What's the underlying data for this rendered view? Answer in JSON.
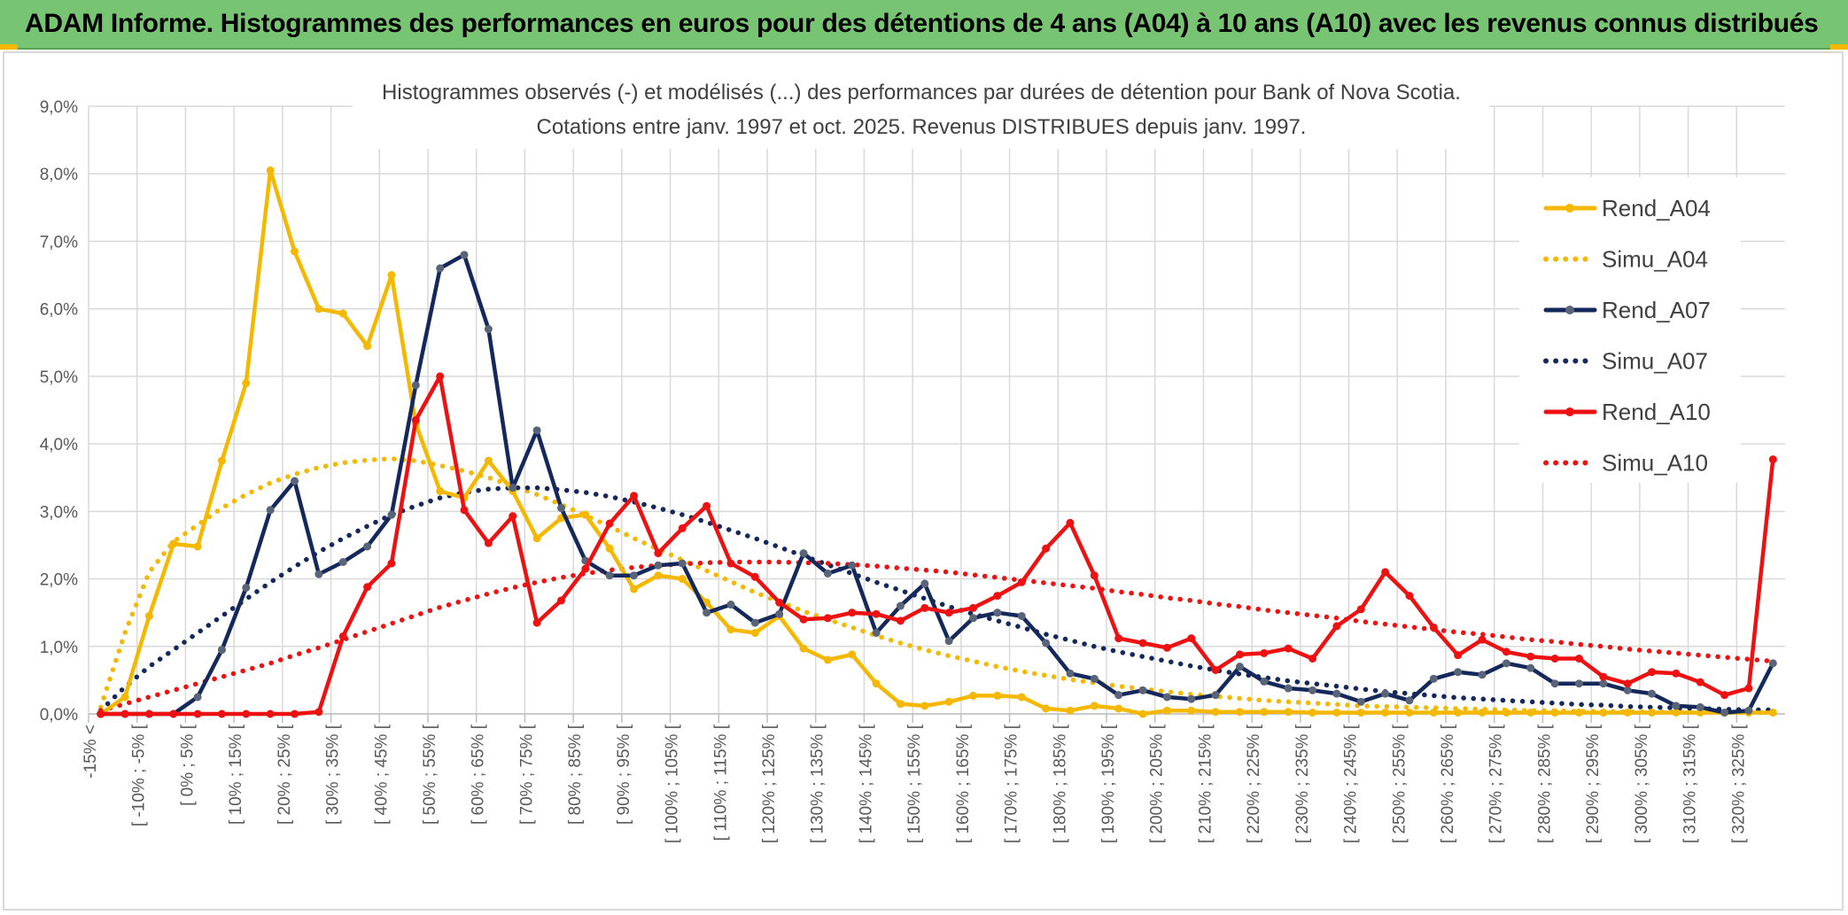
{
  "header": {
    "title": "ADAM Informe. Histogrammes des performances en euros pour des détentions de 4 ans (A04) à 10 ans (A10) avec les revenus connus distribués"
  },
  "colors": {
    "banner": "#77c472",
    "A04": "#f5b800",
    "A07": "#14285c",
    "A10": "#ee1111",
    "grid": "#d9d9d9"
  },
  "chart_data": {
    "type": "line",
    "title_line1": "Histogrammes observés (-) et modélisés (...) des performances par durées de détention pour Bank of Nova Scotia.",
    "title_line2": "Cotations entre janv. 1997 et oct. 2025. Revenus DISTRIBUES depuis janv. 1997.",
    "xlabel": "",
    "ylabel": "",
    "ylim": [
      0,
      9
    ],
    "yticks": [
      "0,0%",
      "1,0%",
      "2,0%",
      "3,0%",
      "4,0%",
      "5,0%",
      "6,0%",
      "7,0%",
      "8,0%",
      "9,0%"
    ],
    "grid": true,
    "legend_position": "right",
    "x_tick_labels": [
      "-15% <",
      "[ -10% ; -5% [",
      "[ 0% ; 5% [",
      "[ 10% ; 15% [",
      "[ 20% ; 25% [",
      "[ 30% ; 35% [",
      "[ 40% ; 45% [",
      "[ 50% ; 55% [",
      "[ 60% ; 65% [",
      "[ 70% ; 75% [",
      "[ 80% ; 85% [",
      "[ 90% ; 95% [",
      "[ 100% ; 105% [",
      "[ 110% ; 115% [",
      "[ 120% ; 125% [",
      "[ 130% ; 135% [",
      "[ 140% ; 145% [",
      "[ 150% ; 155% [",
      "[ 160% ; 165% [",
      "[ 170% ; 175% [",
      "[ 180% ; 185% [",
      "[ 190% ; 195% [",
      "[ 200% ; 205% [",
      "[ 210% ; 215% [",
      "[ 220% ; 225% [",
      "[ 230% ; 235% [",
      "[ 240% ; 245% [",
      "[ 250% ; 255% [",
      "[ 260% ; 265% [",
      "[ 270% ; 275% [",
      "[ 280% ; 285% [",
      "[ 290% ; 295% [",
      "[ 300% ; 305% [",
      "[ 310% ; 315% [",
      "[ 320% ; 325% ["
    ],
    "series": [
      {
        "name": "Rend_A04",
        "style": "solid",
        "color": "#f5b800",
        "values": [
          0,
          0.25,
          1.45,
          2.52,
          2.48,
          3.75,
          4.9,
          8.05,
          6.85,
          6.0,
          5.93,
          5.45,
          6.5,
          4.3,
          3.3,
          3.2,
          3.75,
          3.3,
          2.6,
          2.9,
          2.95,
          2.45,
          1.85,
          2.05,
          2.0,
          1.65,
          1.25,
          1.2,
          1.45,
          0.97,
          0.8,
          0.88,
          0.45,
          0.15,
          0.12,
          0.18,
          0.27,
          0.27,
          0.25,
          0.08,
          0.05,
          0.12,
          0.08,
          0,
          0.05,
          0.05,
          0.03,
          0.03,
          0.03,
          0.03,
          0.02,
          0.02,
          0.02,
          0.02,
          0.02,
          0.02,
          0.02,
          0.02,
          0.02,
          0.02,
          0.02,
          0.02,
          0.02,
          0.02,
          0.02,
          0.02,
          0.02,
          0.02,
          0.02,
          0.02
        ]
      },
      {
        "name": "Simu_A04",
        "style": "dotted",
        "color": "#f5b800",
        "values": [
          0.1,
          1.2,
          2.1,
          2.55,
          2.8,
          3.05,
          3.25,
          3.42,
          3.55,
          3.65,
          3.72,
          3.76,
          3.78,
          3.75,
          3.68,
          3.6,
          3.5,
          3.38,
          3.25,
          3.1,
          2.94,
          2.78,
          2.6,
          2.44,
          2.28,
          2.12,
          1.96,
          1.8,
          1.66,
          1.52,
          1.4,
          1.28,
          1.16,
          1.05,
          0.95,
          0.86,
          0.78,
          0.7,
          0.63,
          0.57,
          0.51,
          0.46,
          0.41,
          0.37,
          0.33,
          0.29,
          0.26,
          0.23,
          0.2,
          0.18,
          0.16,
          0.14,
          0.12,
          0.11,
          0.1,
          0.09,
          0.08,
          0.07,
          0.06,
          0.05,
          0.05,
          0.04,
          0.04,
          0.03,
          0.03,
          0.03,
          0.02,
          0.02,
          0.02,
          0.02
        ]
      },
      {
        "name": "Rend_A07",
        "style": "solid",
        "color": "#14285c",
        "values": [
          0,
          0,
          0,
          0,
          0.25,
          0.95,
          1.87,
          3.02,
          3.45,
          2.07,
          2.25,
          2.48,
          2.95,
          4.87,
          6.6,
          6.8,
          5.7,
          3.35,
          4.2,
          3.05,
          2.27,
          2.05,
          2.05,
          2.2,
          2.23,
          1.5,
          1.62,
          1.35,
          1.48,
          2.38,
          2.08,
          2.2,
          1.2,
          1.6,
          1.93,
          1.08,
          1.42,
          1.5,
          1.45,
          1.05,
          0.6,
          0.52,
          0.28,
          0.35,
          0.25,
          0.22,
          0.28,
          0.7,
          0.48,
          0.38,
          0.35,
          0.3,
          0.18,
          0.3,
          0.2,
          0.52,
          0.62,
          0.58,
          0.75,
          0.68,
          0.45,
          0.45,
          0.45,
          0.35,
          0.3,
          0.12,
          0.1,
          0.02,
          0.05,
          0.75
        ]
      },
      {
        "name": "Simu_A07",
        "style": "dotted",
        "color": "#14285c",
        "values": [
          0.05,
          0.4,
          0.7,
          0.95,
          1.2,
          1.45,
          1.7,
          1.95,
          2.18,
          2.4,
          2.6,
          2.78,
          2.95,
          3.08,
          3.2,
          3.28,
          3.33,
          3.35,
          3.35,
          3.32,
          3.28,
          3.22,
          3.14,
          3.05,
          2.95,
          2.84,
          2.72,
          2.6,
          2.47,
          2.34,
          2.21,
          2.08,
          1.95,
          1.83,
          1.71,
          1.59,
          1.48,
          1.38,
          1.28,
          1.18,
          1.09,
          1.0,
          0.92,
          0.85,
          0.78,
          0.71,
          0.65,
          0.59,
          0.54,
          0.49,
          0.45,
          0.41,
          0.37,
          0.33,
          0.3,
          0.27,
          0.24,
          0.22,
          0.2,
          0.18,
          0.16,
          0.14,
          0.13,
          0.11,
          0.1,
          0.09,
          0.08,
          0.07,
          0.06,
          0.06
        ]
      },
      {
        "name": "Rend_A10",
        "style": "solid",
        "color": "#ee1111",
        "values": [
          0,
          0,
          0,
          0,
          0,
          0,
          0,
          0,
          0,
          0.03,
          1.15,
          1.88,
          2.23,
          4.35,
          5.0,
          3.02,
          2.53,
          2.93,
          1.35,
          1.68,
          2.15,
          2.82,
          3.23,
          2.38,
          2.75,
          3.08,
          2.23,
          2.03,
          1.65,
          1.4,
          1.42,
          1.5,
          1.48,
          1.38,
          1.57,
          1.5,
          1.57,
          1.75,
          1.95,
          2.45,
          2.83,
          2.05,
          1.12,
          1.05,
          0.98,
          1.12,
          0.65,
          0.88,
          0.9,
          0.97,
          0.82,
          1.3,
          1.55,
          2.1,
          1.75,
          1.28,
          0.87,
          1.1,
          0.92,
          0.85,
          0.82,
          0.82,
          0.55,
          0.45,
          0.62,
          0.6,
          0.47,
          0.28,
          0.38,
          3.77
        ]
      },
      {
        "name": "Simu_A10",
        "style": "dotted",
        "color": "#ee1111",
        "values": [
          0.05,
          0.15,
          0.25,
          0.35,
          0.45,
          0.55,
          0.65,
          0.75,
          0.87,
          0.98,
          1.1,
          1.22,
          1.34,
          1.46,
          1.58,
          1.68,
          1.78,
          1.87,
          1.95,
          2.02,
          2.08,
          2.13,
          2.17,
          2.2,
          2.22,
          2.24,
          2.25,
          2.25,
          2.25,
          2.24,
          2.23,
          2.21,
          2.19,
          2.16,
          2.13,
          2.1,
          2.06,
          2.02,
          1.98,
          1.94,
          1.9,
          1.86,
          1.81,
          1.77,
          1.72,
          1.68,
          1.63,
          1.59,
          1.54,
          1.5,
          1.46,
          1.42,
          1.37,
          1.33,
          1.29,
          1.25,
          1.21,
          1.18,
          1.14,
          1.1,
          1.07,
          1.03,
          1.0,
          0.96,
          0.93,
          0.9,
          0.87,
          0.84,
          0.81,
          0.78
        ]
      }
    ]
  }
}
